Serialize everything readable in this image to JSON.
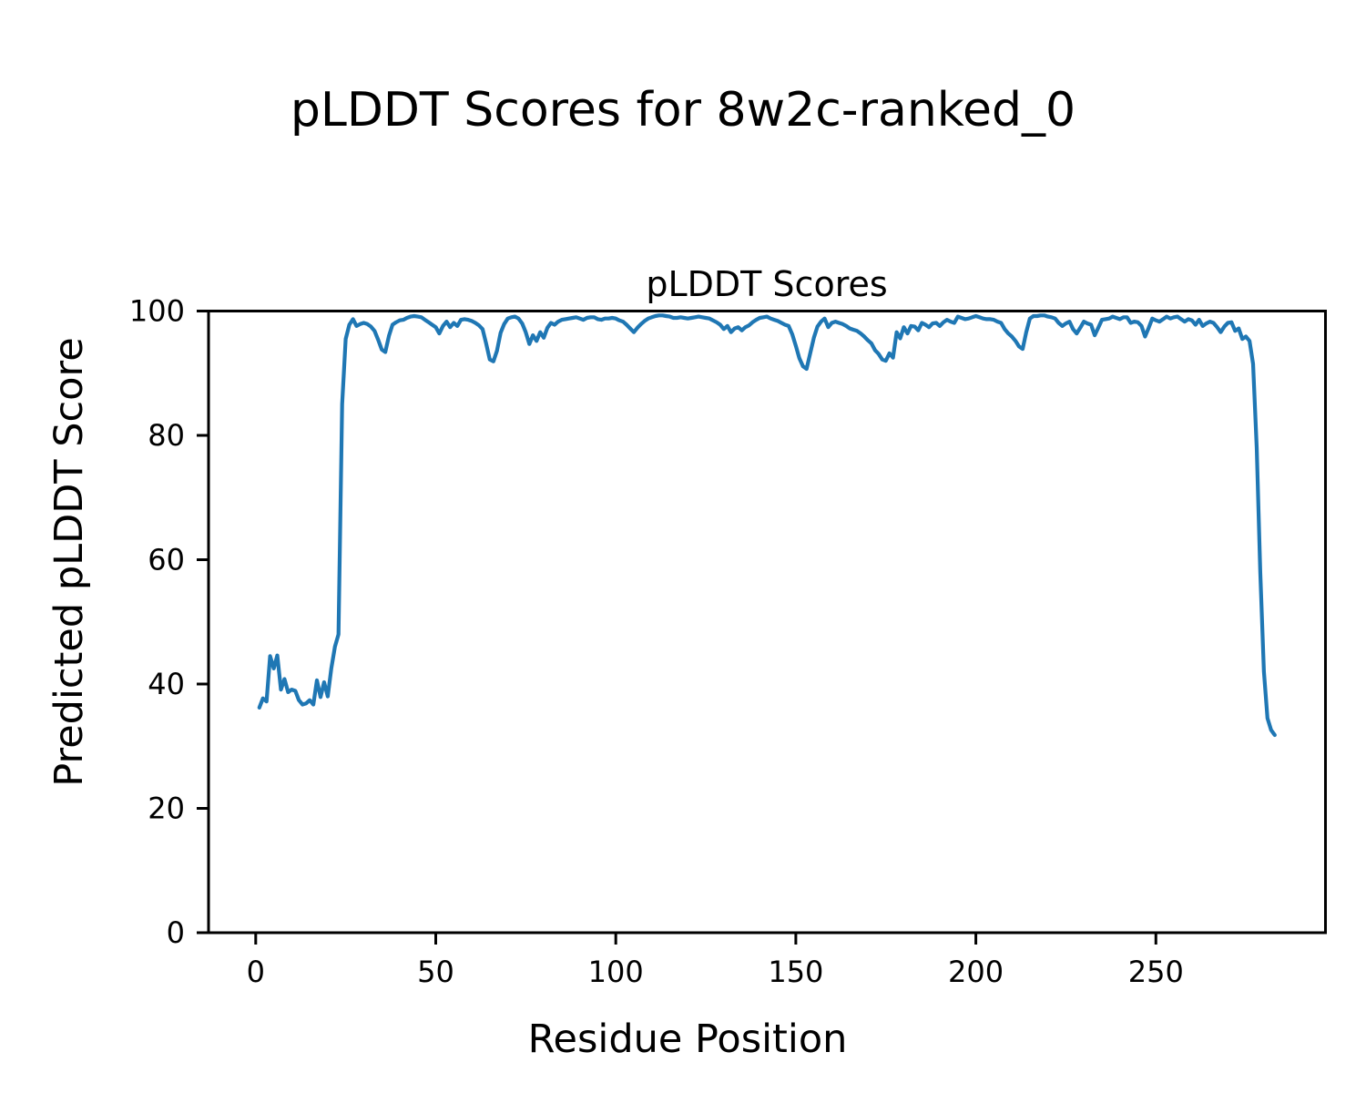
{
  "figure": {
    "suptitle": "pLDDT Scores for 8w2c-ranked_0",
    "background_color": "#ffffff",
    "text_color": "#000000"
  },
  "chart_data": {
    "type": "line",
    "title": "pLDDT Scores",
    "xlabel": "Residue Position",
    "ylabel": "Predicted pLDDT Score",
    "xlim": [
      -13.1,
      297.1
    ],
    "ylim": [
      0,
      100
    ],
    "x_ticks": [
      0,
      50,
      100,
      150,
      200,
      250
    ],
    "y_ticks": [
      0,
      20,
      40,
      60,
      80,
      100
    ],
    "grid": false,
    "legend": "none",
    "line_color": "#1f77b4",
    "axis_color": "#000000",
    "series": [
      {
        "name": "pLDDT",
        "x_start": 1,
        "x_step": 1,
        "values": [
          36.2,
          37.7,
          37.2,
          44.5,
          42.5,
          44.6,
          39.1,
          40.8,
          38.7,
          39.1,
          38.9,
          37.4,
          36.7,
          36.9,
          37.4,
          36.7,
          40.6,
          37.9,
          40.3,
          38.0,
          42.5,
          46.0,
          48.0,
          85.0,
          95.5,
          97.8,
          98.7,
          97.6,
          97.9,
          98.1,
          97.9,
          97.5,
          96.8,
          95.4,
          93.8,
          93.4,
          96.0,
          97.8,
          98.2,
          98.5,
          98.6,
          98.9,
          99.1,
          99.2,
          99.1,
          99.0,
          98.6,
          98.2,
          97.8,
          97.4,
          96.4,
          97.6,
          98.3,
          97.4,
          98.1,
          97.6,
          98.6,
          98.7,
          98.6,
          98.4,
          98.1,
          97.7,
          97.1,
          94.8,
          92.2,
          91.9,
          93.6,
          96.5,
          97.9,
          98.8,
          99.0,
          99.1,
          98.8,
          98.0,
          96.6,
          94.7,
          96.1,
          95.2,
          96.6,
          95.7,
          97.3,
          98.1,
          97.8,
          98.3,
          98.6,
          98.7,
          98.8,
          98.9,
          99.0,
          98.8,
          98.6,
          98.9,
          99.0,
          99.0,
          98.7,
          98.6,
          98.8,
          98.8,
          98.9,
          98.8,
          98.5,
          98.3,
          97.8,
          97.2,
          96.6,
          97.3,
          97.9,
          98.4,
          98.8,
          99.0,
          99.2,
          99.3,
          99.3,
          99.2,
          99.1,
          98.9,
          98.9,
          99.0,
          98.9,
          98.8,
          98.9,
          99.0,
          99.1,
          99.0,
          98.9,
          98.8,
          98.5,
          98.2,
          97.8,
          97.1,
          97.6,
          96.6,
          97.2,
          97.4,
          96.9,
          97.4,
          97.7,
          98.2,
          98.6,
          98.9,
          99.0,
          99.1,
          98.8,
          98.6,
          98.4,
          98.1,
          97.8,
          97.6,
          96.3,
          94.4,
          92.4,
          91.1,
          90.7,
          93.2,
          95.7,
          97.5,
          98.3,
          98.8,
          97.4,
          98.1,
          98.3,
          98.1,
          97.9,
          97.6,
          97.2,
          97.0,
          96.8,
          96.4,
          95.9,
          95.3,
          94.8,
          93.7,
          93.1,
          92.2,
          92.0,
          93.2,
          92.5,
          96.6,
          95.6,
          97.4,
          96.4,
          97.6,
          97.5,
          96.9,
          98.1,
          97.8,
          97.4,
          98.0,
          98.1,
          97.6,
          98.2,
          98.6,
          98.3,
          98.1,
          99.1,
          98.9,
          98.7,
          98.8,
          99.0,
          99.2,
          99.0,
          98.8,
          98.7,
          98.7,
          98.6,
          98.3,
          98.1,
          97.1,
          96.4,
          95.9,
          95.2,
          94.3,
          93.9,
          96.6,
          98.8,
          99.2,
          99.2,
          99.3,
          99.3,
          99.1,
          99.0,
          98.8,
          98.1,
          97.6,
          98.0,
          98.3,
          97.1,
          96.4,
          97.3,
          98.3,
          98.0,
          97.8,
          96.1,
          97.3,
          98.6,
          98.7,
          98.8,
          99.1,
          98.9,
          98.7,
          99.0,
          99.0,
          98.1,
          98.3,
          98.2,
          97.6,
          95.9,
          97.3,
          98.8,
          98.5,
          98.3,
          98.7,
          99.1,
          98.8,
          99.0,
          99.1,
          98.7,
          98.3,
          98.7,
          98.5,
          97.8,
          98.6,
          97.6,
          98.0,
          98.3,
          98.1,
          97.4,
          96.6,
          97.5,
          98.1,
          98.2,
          96.8,
          97.2,
          95.5,
          95.9,
          95.2,
          91.5,
          78.0,
          58.0,
          42.0,
          34.5,
          32.6,
          31.8
        ]
      }
    ]
  }
}
